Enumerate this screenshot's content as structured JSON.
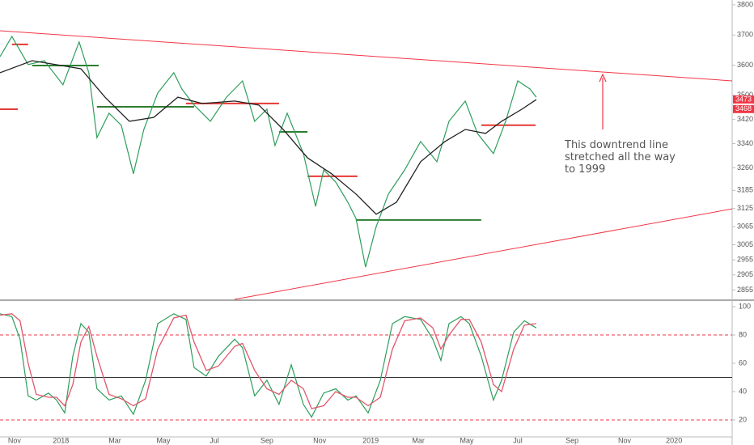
{
  "chart_data": [
    {
      "type": "line",
      "xlim": [
        -0.57,
        28.29
      ],
      "xticks": [
        {
          "value": 0,
          "label": "Nov"
        },
        {
          "value": 1.83,
          "label": "2018"
        },
        {
          "value": 3.96,
          "label": "Mar"
        },
        {
          "value": 5.87,
          "label": "May"
        },
        {
          "value": 7.88,
          "label": "Jul"
        },
        {
          "value": 9.95,
          "label": "Sep"
        },
        {
          "value": 12.03,
          "label": "Nov"
        },
        {
          "value": 14.04,
          "label": "2019"
        },
        {
          "value": 15.92,
          "label": "Mar"
        },
        {
          "value": 17.83,
          "label": "May"
        },
        {
          "value": 19.84,
          "label": "Jul"
        },
        {
          "value": 21.98,
          "label": "Sep"
        },
        {
          "value": 24.05,
          "label": "Nov"
        },
        {
          "value": 26.0,
          "label": "2020"
        }
      ],
      "ylim": [
        2824,
        3816
      ],
      "yticks": [
        2855,
        2905,
        2955,
        3005,
        3065,
        3125,
        3185,
        3260,
        3340,
        3420,
        3500,
        3600,
        3700,
        3800
      ],
      "series": [
        {
          "color": "#2e9e5b",
          "x": [
            -0.57,
            -0.1,
            0.54,
            1.18,
            1.91,
            2.55,
            2.93,
            3.25,
            3.73,
            4.21,
            4.69,
            5.1,
            5.65,
            6.28,
            6.6,
            7.08,
            7.72,
            8.36,
            8.99,
            9.47,
            9.95,
            10.27,
            10.75,
            11.39,
            11.87,
            12.19,
            12.66,
            13.14,
            13.46,
            13.84,
            14.26,
            14.74,
            15.38,
            16.01,
            16.65,
            17.13,
            17.77,
            18.25,
            18.88,
            19.36,
            19.84,
            20.32,
            20.57
          ],
          "values": [
            3628,
            3695,
            3602,
            3615,
            3535,
            3677,
            3575,
            3360,
            3441,
            3401,
            3240,
            3387,
            3508,
            3575,
            3521,
            3468,
            3414,
            3494,
            3548,
            3414,
            3454,
            3334,
            3441,
            3307,
            3132,
            3253,
            3213,
            3146,
            3092,
            2931,
            3065,
            3173,
            3253,
            3347,
            3280,
            3414,
            3481,
            3374,
            3307,
            3414,
            3548,
            3521,
            3494
          ]
        },
        {
          "color": "#222222",
          "x": [
            -0.57,
            0.7,
            2.62,
            3.57,
            4.53,
            5.49,
            6.44,
            7.4,
            8.68,
            9.63,
            10.59,
            11.55,
            12.5,
            13.46,
            14.26,
            15.06,
            16.01,
            16.97,
            17.77,
            18.57,
            19.2,
            20.0,
            20.57
          ],
          "values": [
            3575,
            3615,
            3588,
            3494,
            3414,
            3427,
            3494,
            3473,
            3481,
            3468,
            3387,
            3293,
            3240,
            3173,
            3106,
            3146,
            3280,
            3347,
            3387,
            3374,
            3414,
            3454,
            3486
          ]
        }
      ],
      "trendlines": [
        {
          "x": [
            -0.57,
            28.29
          ],
          "values": [
            3714,
            3548
          ],
          "color": "#f23645"
        },
        {
          "x": [
            8.68,
            28.29
          ],
          "values": [
            2824,
            3124
          ],
          "color": "#f23645"
        }
      ],
      "levels": [
        {
          "x": [
            -0.57,
            0.13
          ],
          "value": 3454,
          "color": "#e53935"
        },
        {
          "x": [
            -0.1,
            0.54
          ],
          "value": 3669,
          "color": "#e53935"
        },
        {
          "x": [
            0.7,
            3.32
          ],
          "value": 3599,
          "color": "#2e7d32"
        },
        {
          "x": [
            3.25,
            7.08
          ],
          "value": 3462,
          "color": "#2e7d32"
        },
        {
          "x": [
            6.76,
            10.43
          ],
          "value": 3473,
          "color": "#e53935"
        },
        {
          "x": [
            10.43,
            11.55
          ],
          "value": 3379,
          "color": "#2e7d32"
        },
        {
          "x": [
            11.55,
            13.52
          ],
          "value": 3232,
          "color": "#e53935"
        },
        {
          "x": [
            13.46,
            18.4
          ],
          "value": 3087,
          "color": "#2e7d32"
        },
        {
          "x": [
            18.4,
            20.54
          ],
          "value": 3401,
          "color": "#e53935"
        }
      ],
      "price_tags": [
        3473,
        3468
      ],
      "annotation": "This downtrend line stretched all the way to 1999"
    },
    {
      "type": "line",
      "ylim": [
        8,
        104
      ],
      "yticks": [
        20,
        40,
        60,
        80,
        100
      ],
      "levels": [
        {
          "value": 80,
          "color": "#f23645",
          "style": "dashed"
        },
        {
          "value": 50,
          "color": "#333333",
          "style": "solid"
        },
        {
          "value": 20,
          "color": "#f23645",
          "style": "dashed"
        }
      ],
      "series": [
        {
          "color": "#2e9e5b",
          "x": [
            -0.57,
            -0.1,
            0.22,
            0.54,
            0.86,
            1.34,
            1.66,
            1.98,
            2.3,
            2.62,
            2.93,
            3.25,
            3.73,
            4.21,
            4.69,
            5.17,
            5.65,
            6.28,
            6.76,
            7.08,
            7.56,
            8.04,
            8.68,
            8.99,
            9.47,
            9.95,
            10.43,
            10.91,
            11.39,
            11.71,
            12.19,
            12.66,
            13.14,
            13.46,
            13.94,
            14.42,
            14.9,
            15.38,
            16.01,
            16.49,
            16.81,
            17.13,
            17.6,
            17.93,
            18.4,
            18.88,
            19.2,
            19.68,
            20.1,
            20.57
          ],
          "values": [
            95,
            93,
            77,
            37,
            34,
            39,
            34,
            25,
            65,
            88,
            82,
            42,
            34,
            37,
            24,
            48,
            88,
            95,
            91,
            57,
            51,
            65,
            77,
            71,
            37,
            48,
            31,
            59,
            31,
            22,
            39,
            42,
            34,
            37,
            25,
            48,
            88,
            93,
            91,
            77,
            62,
            88,
            93,
            88,
            65,
            34,
            48,
            82,
            90,
            85
          ]
        },
        {
          "color": "#e0566b",
          "x": [
            -0.57,
            -0.1,
            0.22,
            0.54,
            0.86,
            1.34,
            1.66,
            1.98,
            2.3,
            2.62,
            2.93,
            3.25,
            3.73,
            4.21,
            4.69,
            5.17,
            5.65,
            6.28,
            6.76,
            7.08,
            7.56,
            8.04,
            8.68,
            8.99,
            9.47,
            9.95,
            10.43,
            10.91,
            11.39,
            11.71,
            12.19,
            12.66,
            13.14,
            13.46,
            13.94,
            14.42,
            14.9,
            15.38,
            16.01,
            16.49,
            16.81,
            17.13,
            17.6,
            17.93,
            18.4,
            18.88,
            19.2,
            19.68,
            20.1,
            20.57
          ],
          "values": [
            94,
            95,
            90,
            60,
            38,
            36,
            36,
            30,
            45,
            75,
            86,
            65,
            38,
            35,
            30,
            35,
            70,
            92,
            94,
            75,
            55,
            58,
            72,
            74,
            55,
            42,
            38,
            48,
            42,
            28,
            30,
            40,
            36,
            36,
            30,
            36,
            70,
            90,
            92,
            85,
            70,
            80,
            91,
            91,
            75,
            45,
            40,
            70,
            87,
            88
          ]
        }
      ]
    }
  ]
}
